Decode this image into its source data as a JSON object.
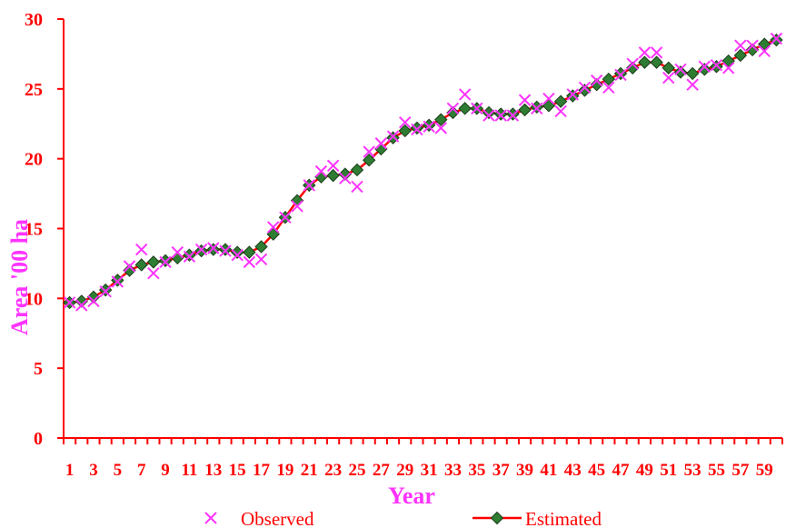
{
  "chart_data": {
    "type": "line",
    "title": "",
    "xlabel": "Year",
    "ylabel": "Area '00 ha",
    "ylim": [
      0,
      30
    ],
    "yticks": [
      0,
      5,
      10,
      15,
      20,
      25,
      30
    ],
    "xlim": [
      1,
      60
    ],
    "xticks": [
      1,
      3,
      5,
      7,
      9,
      11,
      13,
      15,
      17,
      19,
      21,
      23,
      25,
      27,
      29,
      31,
      33,
      35,
      37,
      39,
      41,
      43,
      45,
      47,
      49,
      51,
      53,
      55,
      57,
      59
    ],
    "xtick_labels": [
      "1",
      "3",
      "5",
      "7",
      "9",
      "11",
      "13",
      "15",
      "17",
      "19",
      "21",
      "23",
      "25",
      "27",
      "29",
      "31",
      "33",
      "35",
      "37",
      "39",
      "41",
      "43",
      "45",
      "47",
      "49",
      "51",
      "53",
      "55",
      "57",
      "59"
    ],
    "grid": false,
    "legend_position": "bottom",
    "x": [
      1,
      2,
      3,
      4,
      5,
      6,
      7,
      8,
      9,
      10,
      11,
      12,
      13,
      14,
      15,
      16,
      17,
      18,
      19,
      20,
      21,
      22,
      23,
      24,
      25,
      26,
      27,
      28,
      29,
      30,
      31,
      32,
      33,
      34,
      35,
      36,
      37,
      38,
      39,
      40,
      41,
      42,
      43,
      44,
      45,
      46,
      47,
      48,
      49,
      50,
      51,
      52,
      53,
      54,
      55,
      56,
      57,
      58,
      59,
      60
    ],
    "series": [
      {
        "name": "Observed",
        "marker": "x",
        "color": "#ff33ff",
        "values": [
          9.7,
          9.5,
          9.8,
          10.5,
          11.2,
          12.3,
          13.5,
          11.8,
          12.6,
          13.3,
          13.0,
          13.5,
          13.6,
          13.4,
          13.1,
          12.6,
          12.8,
          15.1,
          15.8,
          16.6,
          18.1,
          19.1,
          19.5,
          18.6,
          18.0,
          20.5,
          21.1,
          21.6,
          22.6,
          22.1,
          22.3,
          22.2,
          23.6,
          24.6,
          23.6,
          23.1,
          23.1,
          23.1,
          24.2,
          23.6,
          24.3,
          23.4,
          24.6,
          25.1,
          25.6,
          25.1,
          26.0,
          26.8,
          27.6,
          27.6,
          25.8,
          26.4,
          25.3,
          26.6,
          26.7,
          26.5,
          28.1,
          28.1,
          27.7,
          28.6
        ]
      },
      {
        "name": "Estimated",
        "marker": "diamond",
        "color": "#ff0000",
        "marker_color": "#2e7d32",
        "values": [
          9.7,
          9.8,
          10.1,
          10.6,
          11.3,
          12.0,
          12.4,
          12.6,
          12.7,
          12.9,
          13.1,
          13.4,
          13.5,
          13.5,
          13.3,
          13.3,
          13.7,
          14.6,
          15.8,
          17.0,
          18.1,
          18.7,
          18.8,
          18.9,
          19.2,
          19.9,
          20.7,
          21.5,
          22.0,
          22.2,
          22.4,
          22.8,
          23.3,
          23.6,
          23.6,
          23.3,
          23.2,
          23.2,
          23.5,
          23.7,
          23.8,
          24.1,
          24.5,
          24.9,
          25.3,
          25.7,
          26.1,
          26.5,
          26.9,
          26.9,
          26.5,
          26.2,
          26.1,
          26.4,
          26.6,
          27.0,
          27.4,
          27.8,
          28.2,
          28.5
        ]
      }
    ]
  }
}
